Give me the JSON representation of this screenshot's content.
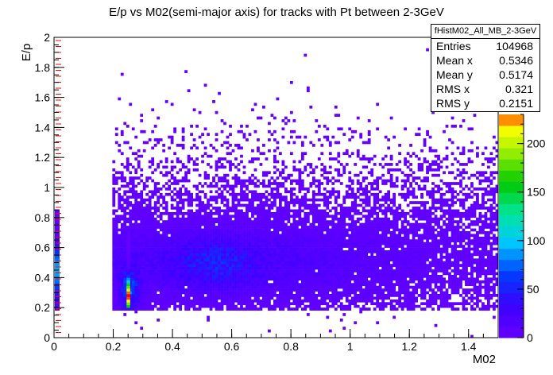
{
  "chart_data": {
    "type": "heatmap",
    "title": "E/p vs M02(semi-major axis) for tracks with Pt between 2-3GeV",
    "xlabel": "M02",
    "ylabel": "E/p",
    "xlim": [
      0,
      1.5
    ],
    "ylim": [
      0,
      2
    ],
    "x_ticks": [
      "0",
      "0.2",
      "0.4",
      "0.6",
      "0.8",
      "1",
      "1.2",
      "1.4"
    ],
    "y_ticks": [
      "0",
      "0.2",
      "0.4",
      "0.6",
      "0.8",
      "1",
      "1.2",
      "1.4",
      "1.6",
      "1.8",
      "2"
    ],
    "colorbar": {
      "zlim": [
        0,
        230
      ],
      "ticks": [
        "0",
        "50",
        "100",
        "150",
        "200"
      ]
    },
    "bins": {
      "x": 160,
      "y": 110
    },
    "features": [
      {
        "name": "narrow peak",
        "x": 0.25,
        "y": 0.28,
        "max_counts": 230
      },
      {
        "name": "broad cluster",
        "x": 0.55,
        "y": 0.5
      },
      {
        "name": "band near zero M02",
        "x": 0.005,
        "y": 0.45
      }
    ],
    "stats": {
      "name": "fHistM02_All_MB_2-3GeV",
      "entries": "104968",
      "mean_x": "0.5346",
      "mean_y": "0.5174",
      "rms_x": "0.321",
      "rms_y": "0.2151"
    }
  },
  "stat_labels": {
    "entries": "Entries",
    "mean_x": "Mean x",
    "mean_y": "Mean y",
    "rms_x": "RMS x",
    "rms_y": "RMS y"
  },
  "colors": {
    "low": "#6600ff",
    "high": "#ffff00",
    "hot": "#ff0000",
    "axis": "#000000",
    "edge_ticks": "#ff0000"
  }
}
